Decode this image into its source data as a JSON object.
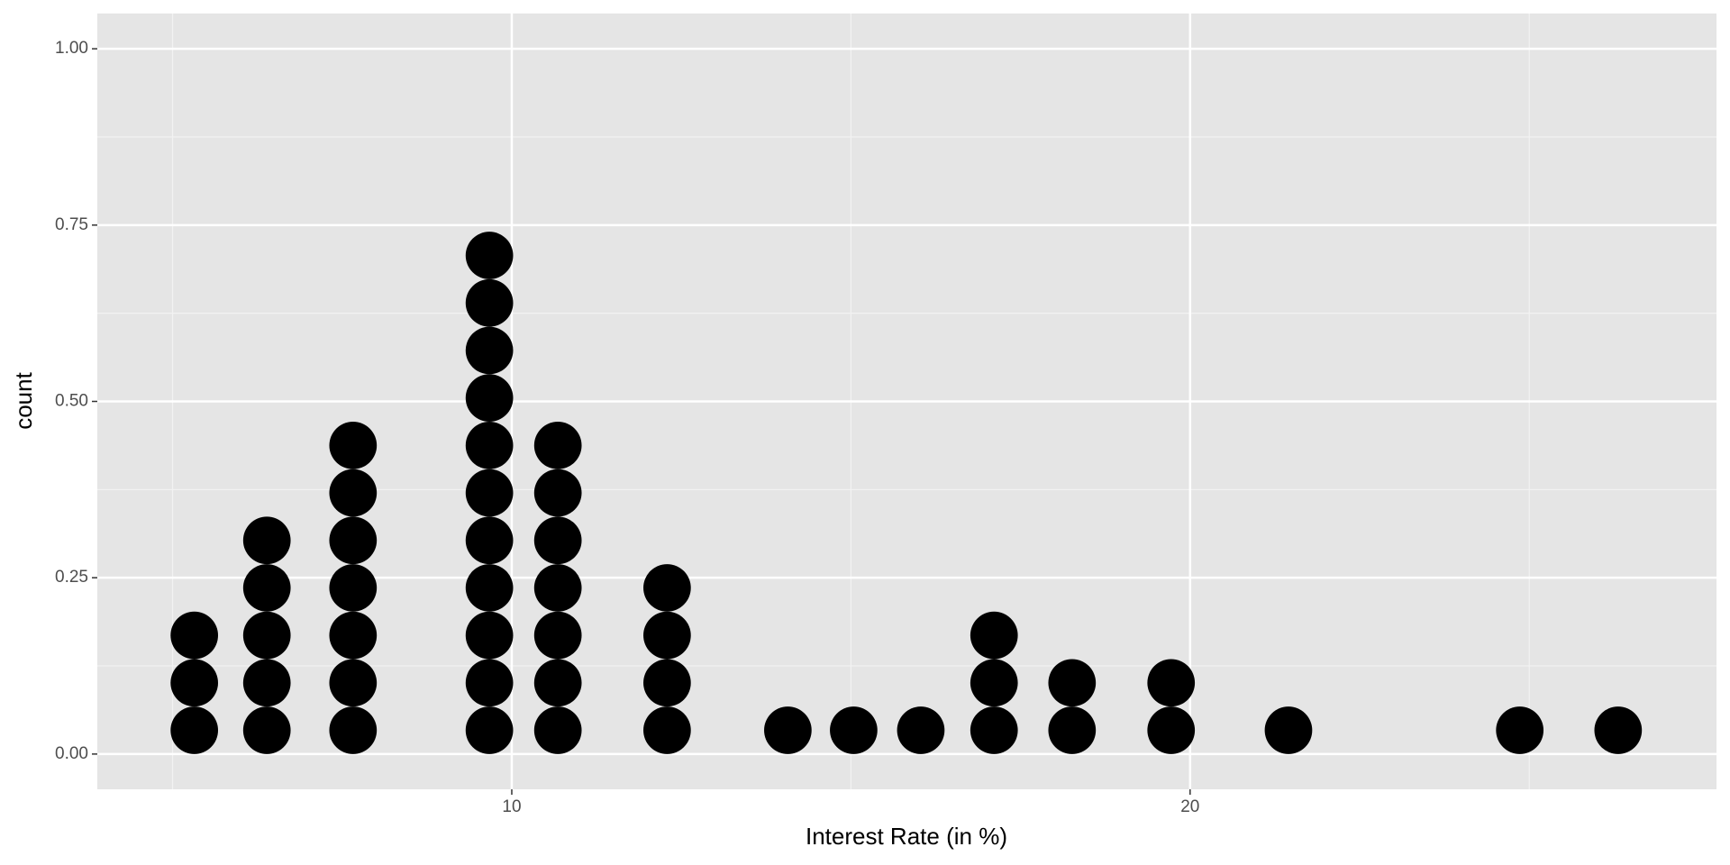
{
  "chart_data": {
    "type": "dotplot",
    "x_label": "Interest Rate (in %)",
    "y_label": "count",
    "x": [
      5.32,
      6.39,
      7.66,
      9.67,
      10.68,
      12.29,
      14.07,
      15.04,
      16.03,
      17.11,
      18.26,
      19.72,
      21.45,
      24.86,
      26.31
    ],
    "values": [
      3,
      5,
      7,
      11,
      7,
      4,
      1,
      1,
      1,
      3,
      2,
      2,
      1,
      1,
      1
    ],
    "binwidth": 0.7,
    "color": "#000000",
    "xlim": [
      3.89,
      27.76
    ],
    "xticks": [
      10,
      20
    ],
    "xminor_ticks": [
      5,
      15,
      25
    ],
    "ylim": [
      -0.05,
      1.05
    ],
    "yticks": [
      {
        "value": 0,
        "label": "0.00"
      },
      {
        "value": 0.25,
        "label": "0.25"
      },
      {
        "value": 0.5,
        "label": "0.50"
      },
      {
        "value": 0.75,
        "label": "0.75"
      },
      {
        "value": 1,
        "label": "1.00"
      }
    ],
    "yminor_ticks": [
      0.125,
      0.375,
      0.625,
      0.875
    ],
    "grid": true
  }
}
